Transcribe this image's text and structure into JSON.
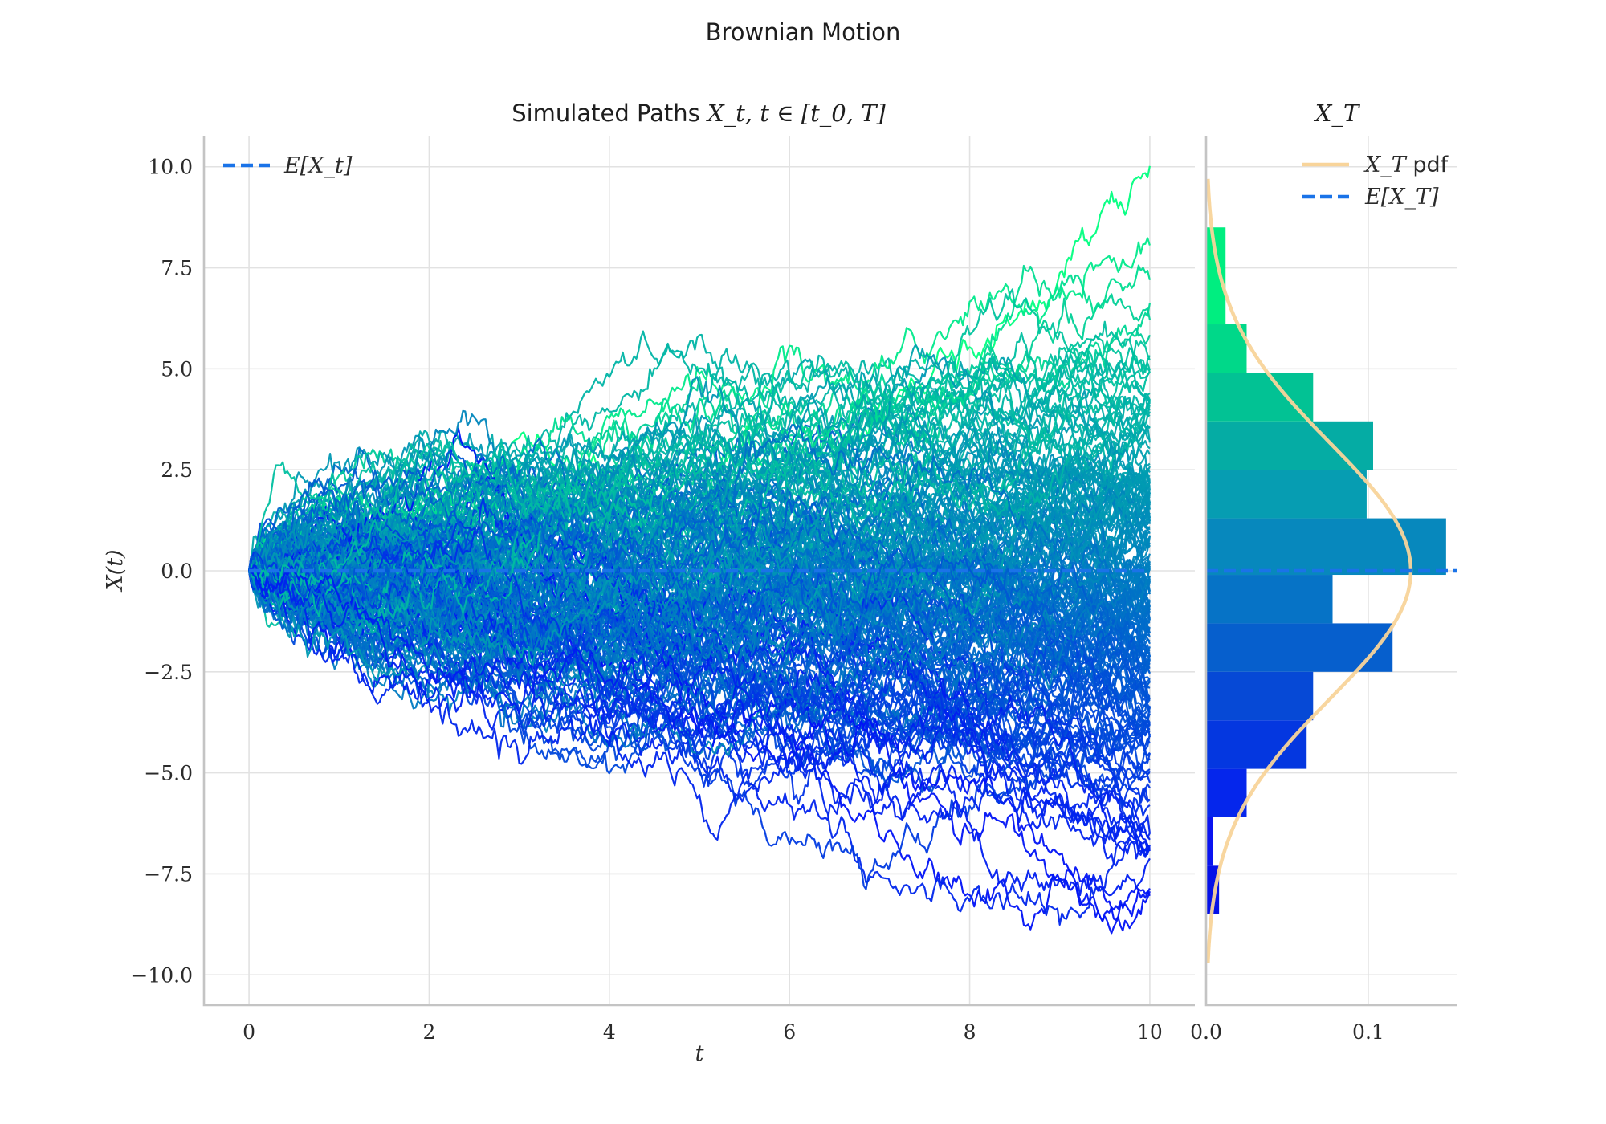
{
  "figure": {
    "suptitle": "Brownian Motion"
  },
  "chart_data": [
    {
      "type": "line",
      "title": {
        "prefix": "Simulated Paths ",
        "math": "X_t, t ∈ [t_0, T]"
      },
      "xlabel": "t",
      "ylabel": "X(t)",
      "xlim": [
        -0.5,
        10.5
      ],
      "ylim": [
        -10.75,
        10.75
      ],
      "xticks": [
        0,
        2,
        4,
        6,
        8,
        10
      ],
      "xtick_labels": [
        "0",
        "2",
        "4",
        "6",
        "8",
        "10"
      ],
      "yticks": [
        10.0,
        7.5,
        5.0,
        2.5,
        0.0,
        -2.5,
        -5.0,
        -7.5,
        -10.0
      ],
      "ytick_labels": [
        "10.0",
        "7.5",
        "5.0",
        "2.5",
        "0.0",
        "−2.5",
        "−5.0",
        "−7.5",
        "−10.0"
      ],
      "grid": true,
      "legend": {
        "placement": "top-left",
        "entries": [
          {
            "label": "E[X_t]",
            "style": "dashed",
            "color": "#1a73e8"
          }
        ]
      },
      "mean_line": {
        "name": "E[X_t]",
        "x": [
          0,
          10
        ],
        "y": [
          0,
          0
        ],
        "color": "#1a73e8"
      },
      "paths": {
        "count": 200,
        "t_start": 0,
        "t_end": 10,
        "x0": 0,
        "colormap": "winter",
        "colormap_range": [
          "#0000ff",
          "#00ff80"
        ],
        "color_by": "terminal value",
        "terminal_range": [
          -9.3,
          9.7
        ]
      }
    },
    {
      "type": "bar",
      "orientation": "horizontal",
      "title": {
        "math": "X_T"
      },
      "xlim": [
        0,
        0.155
      ],
      "ylim": [
        -10.75,
        10.75
      ],
      "xticks": [
        0.0,
        0.1
      ],
      "xtick_labels": [
        "0.0",
        "0.1"
      ],
      "grid": true,
      "legend": {
        "placement": "top-right",
        "entries": [
          {
            "label": "X_T",
            "label_suffix": " pdf",
            "style": "solid",
            "color": "#f8d49a"
          },
          {
            "label": "E[X_T]",
            "style": "dashed",
            "color": "#1a73e8"
          }
        ]
      },
      "bins": [
        {
          "lo": -8.5,
          "hi": -7.3,
          "density": 0.008,
          "color": "#0510e8"
        },
        {
          "lo": -7.3,
          "hi": -6.1,
          "density": 0.004,
          "color": "#0a14f0"
        },
        {
          "lo": -6.1,
          "hi": -4.9,
          "density": 0.025,
          "color": "#0526ec"
        },
        {
          "lo": -4.9,
          "hi": -3.7,
          "density": 0.062,
          "color": "#0437e0"
        },
        {
          "lo": -3.7,
          "hi": -2.5,
          "density": 0.066,
          "color": "#0649d6"
        },
        {
          "lo": -2.5,
          "hi": -1.3,
          "density": 0.115,
          "color": "#065fcd"
        },
        {
          "lo": -1.3,
          "hi": -0.1,
          "density": 0.078,
          "color": "#0673c6"
        },
        {
          "lo": -0.1,
          "hi": 1.3,
          "density": 0.148,
          "color": "#0788bd"
        },
        {
          "lo": 1.3,
          "hi": 2.5,
          "density": 0.099,
          "color": "#069db2"
        },
        {
          "lo": 2.5,
          "hi": 3.7,
          "density": 0.103,
          "color": "#05aca4"
        },
        {
          "lo": 3.7,
          "hi": 4.9,
          "density": 0.066,
          "color": "#02c294"
        },
        {
          "lo": 4.9,
          "hi": 6.1,
          "density": 0.025,
          "color": "#00d889"
        },
        {
          "lo": 6.1,
          "hi": 8.5,
          "density": 0.012,
          "color": "#00ee80"
        }
      ],
      "pdf": {
        "name": "X_T pdf",
        "mean": 0.0,
        "std": 3.16,
        "y_range": [
          -9.7,
          9.7
        ],
        "color": "#f8d49a"
      },
      "mean_line": {
        "name": "E[X_T]",
        "y": 0.0,
        "color": "#1a73e8"
      }
    }
  ]
}
